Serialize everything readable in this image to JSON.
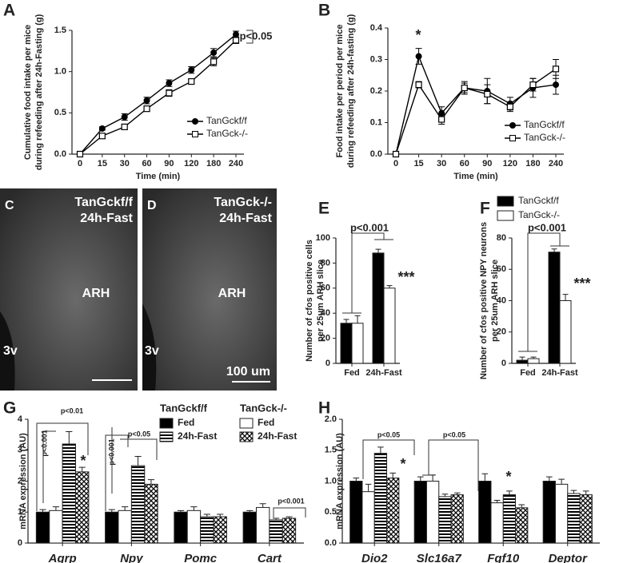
{
  "chart_data": [
    {
      "type": "line",
      "panel": "A",
      "categories": [
        0,
        15,
        30,
        60,
        90,
        120,
        180,
        240
      ],
      "xlabel": "Time (min)",
      "ylabel": [
        "Cumulative food intake per mice",
        "during refeeding after 24h-Fasting (g)"
      ],
      "ylim": [
        0,
        1.5
      ],
      "yticks": [
        {
          "value": 0,
          "label": "0.0"
        },
        0.5,
        {
          "value": 1,
          "label": "1.0"
        },
        1.5
      ],
      "series": [
        {
          "name": "TanGckf/f",
          "color": "#000000",
          "marker": "circle",
          "filled": true,
          "values": [
            0,
            0.31,
            0.45,
            0.65,
            0.86,
            1.02,
            1.23,
            1.45
          ],
          "errors": [
            0,
            0.02,
            0.04,
            0.04,
            0.04,
            0.04,
            0.05,
            0.04
          ]
        },
        {
          "name": "TanGck-/-",
          "color": "#000000",
          "marker": "square",
          "filled": false,
          "values": [
            0,
            0.22,
            0.33,
            0.55,
            0.74,
            0.88,
            1.12,
            1.38
          ],
          "errors": [
            0,
            0.02,
            0.03,
            0.03,
            0.04,
            0.03,
            0.05,
            0.04
          ]
        }
      ],
      "annotations": [
        "p<0.05"
      ]
    },
    {
      "type": "line",
      "panel": "B",
      "categories": [
        0,
        15,
        30,
        60,
        90,
        120,
        180,
        240
      ],
      "xlabel": "Time (min)",
      "ylabel": [
        "Food intake per period per mice",
        "during refeeding after 24h-fasting (g)"
      ],
      "ylim": [
        0,
        0.4
      ],
      "yticks": [
        {
          "value": 0,
          "label": "0.0"
        },
        0.1,
        0.2,
        0.3,
        0.4
      ],
      "series": [
        {
          "name": "TanGckf/f",
          "color": "#000000",
          "marker": "circle",
          "filled": true,
          "values": [
            0,
            0.31,
            0.13,
            0.21,
            0.2,
            0.16,
            0.21,
            0.22
          ],
          "errors": [
            0,
            0.025,
            0.02,
            0.02,
            0.04,
            0.02,
            0.03,
            0.03
          ]
        },
        {
          "name": "TanGck-/-",
          "color": "#000000",
          "marker": "square",
          "filled": false,
          "values": [
            0,
            0.22,
            0.11,
            0.21,
            0.19,
            0.15,
            0.22,
            0.27
          ],
          "errors": [
            0,
            0.01,
            0.015,
            0.015,
            0.03,
            0.015,
            0.02,
            0.03
          ]
        }
      ],
      "annotations": [
        "*"
      ]
    },
    {
      "type": "bar",
      "panel": "E",
      "categories": [
        "Fed",
        "24h-Fast"
      ],
      "ylabel": [
        "Number of cfos positive cells",
        "per 25um ARH slice"
      ],
      "ylim": [
        0,
        100
      ],
      "yticks": [
        0,
        20,
        40,
        60,
        80,
        100
      ],
      "series": [
        {
          "name": "TanGckf/f",
          "color": "#000000",
          "values": [
            32,
            88
          ],
          "errors": [
            3,
            3
          ]
        },
        {
          "name": "TanGck-/-",
          "color": "#ffffff",
          "values": [
            32,
            60
          ],
          "errors": [
            6,
            2
          ]
        }
      ],
      "annotations": [
        "p<0.001",
        "***"
      ]
    },
    {
      "type": "bar",
      "panel": "F",
      "categories": [
        "Fed",
        "24h-Fast"
      ],
      "ylabel": [
        "Number of cfos positive NPY neurons",
        "per 25um ARH slice"
      ],
      "ylim": [
        0,
        80
      ],
      "yticks": [
        0,
        20,
        40,
        60,
        80
      ],
      "legend": true,
      "series": [
        {
          "name": "TanGckf/f",
          "color": "#000000",
          "values": [
            2,
            71
          ],
          "errors": [
            2,
            2
          ]
        },
        {
          "name": "TanGck-/-",
          "color": "#ffffff",
          "values": [
            3,
            40
          ],
          "errors": [
            1,
            4
          ]
        }
      ],
      "annotations": [
        "p<0.001",
        "***"
      ]
    },
    {
      "type": "bar",
      "panel": "G",
      "categories": [
        "Agrp",
        "Npy",
        "Pomc",
        "Cart"
      ],
      "ylabel": [
        "mRNA expression (AU)"
      ],
      "ylim": [
        0,
        4
      ],
      "yticks": [
        0,
        1,
        2,
        3,
        4
      ],
      "legend_titles": [
        "TanGckf/f",
        "TanGck-/-"
      ],
      "series": [
        {
          "name": "Fed",
          "color": "#000000",
          "values": [
            1,
            1,
            1,
            1
          ],
          "errors": [
            0.08,
            0.08,
            0.05,
            0.05
          ]
        },
        {
          "name": "Fed",
          "color": "#ffffff",
          "values": [
            1.05,
            1.05,
            1.05,
            1.15
          ],
          "errors": [
            0.12,
            0.12,
            0.12,
            0.12
          ]
        },
        {
          "name": "24h-Fast",
          "color": "#000000",
          "pattern": "stripes",
          "values": [
            3.2,
            2.5,
            0.85,
            0.75
          ],
          "errors": [
            0.4,
            0.3,
            0.08,
            0.05
          ]
        },
        {
          "name": "24h-Fast",
          "color": "#000000",
          "pattern": "checker",
          "values": [
            2.3,
            1.9,
            0.85,
            0.8
          ],
          "errors": [
            0.15,
            0.15,
            0.08,
            0.05
          ]
        }
      ],
      "annotations": [
        "p<0.001",
        "p<0.01",
        "*",
        "p<0.001",
        "p<0.05",
        "p<0.001"
      ]
    },
    {
      "type": "bar",
      "panel": "H",
      "categories": [
        "Dio2",
        "Slc16a7",
        "Fgf10",
        "Deptor"
      ],
      "ylabel": [
        "mRNA expression (AU)"
      ],
      "ylim": [
        0,
        2
      ],
      "yticks": [
        {
          "value": 0,
          "label": "0.0"
        },
        0.5,
        {
          "value": 1,
          "label": "1.0"
        },
        1.5,
        {
          "value": 2,
          "label": "2.0"
        }
      ],
      "series": [
        {
          "name": "Fed",
          "color": "#000000",
          "values": [
            1,
            1,
            1,
            1
          ],
          "errors": [
            0.05,
            0.07,
            0.12,
            0.07
          ]
        },
        {
          "name": "Fed",
          "color": "#ffffff",
          "values": [
            0.83,
            1,
            0.65,
            0.95
          ],
          "errors": [
            0.12,
            0.1,
            0.04,
            0.08
          ]
        },
        {
          "name": "24h-Fast",
          "color": "#000000",
          "pattern": "stripes",
          "values": [
            1.45,
            0.75,
            0.78,
            0.8
          ],
          "errors": [
            0.1,
            0.04,
            0.06,
            0.05
          ]
        },
        {
          "name": "24h-Fast",
          "color": "#000000",
          "pattern": "checker",
          "values": [
            1.05,
            0.78,
            0.57,
            0.78
          ],
          "errors": [
            0.08,
            0.03,
            0.05,
            0.06
          ]
        }
      ],
      "annotations": [
        "p<0.05",
        "*",
        "p<0.05",
        "*"
      ]
    }
  ],
  "images": [
    {
      "panel": "C",
      "title": [
        "TanGckf/f",
        "24h-Fast"
      ],
      "region": "ARH",
      "ventricle": "3v"
    },
    {
      "panel": "D",
      "title": [
        "TanGck-/-",
        "24h-Fast"
      ],
      "region": "ARH",
      "ventricle": "3v",
      "scale_bar": "100 um"
    }
  ]
}
